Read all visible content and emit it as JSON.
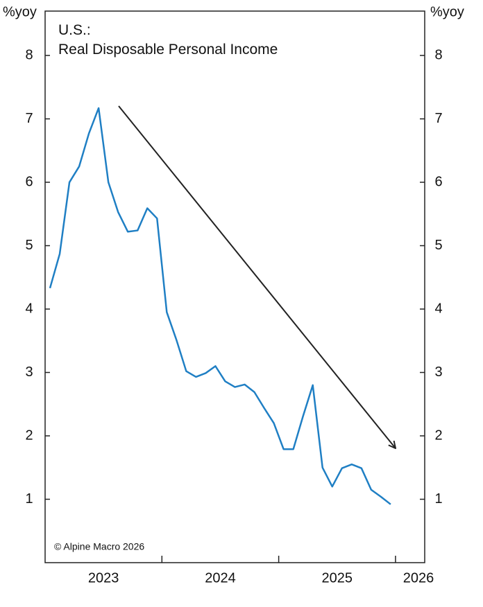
{
  "chart_data": {
    "type": "line",
    "title": "U.S.:",
    "subtitle": "Real Disposable Personal Income",
    "source": "© Alpine Macro 2026",
    "y_label": "%yoy",
    "y2_label": "%yoy",
    "x": [
      2023.0417,
      2023.125,
      2023.2083,
      2023.2917,
      2023.375,
      2023.4583,
      2023.5417,
      2023.625,
      2023.7083,
      2023.7917,
      2023.875,
      2023.9583,
      2024.0417,
      2024.125,
      2024.2083,
      2024.2917,
      2024.375,
      2024.4583,
      2024.5417,
      2024.625,
      2024.7083,
      2024.7917,
      2024.875,
      2024.9583,
      2025.0417,
      2025.125,
      2025.2083,
      2025.2917,
      2025.375,
      2025.4583,
      2025.5417,
      2025.625,
      2025.7083,
      2025.7917,
      2025.875,
      2025.9583
    ],
    "series": [
      {
        "name": "Real Disposable Personal Income",
        "color": "#1f7fc4",
        "values": [
          4.33,
          4.87,
          6.0,
          6.25,
          6.77,
          7.17,
          6.0,
          5.53,
          5.22,
          5.24,
          5.59,
          5.43,
          3.95,
          3.51,
          3.02,
          2.93,
          2.99,
          3.1,
          2.86,
          2.77,
          2.81,
          2.69,
          2.44,
          2.2,
          1.79,
          1.79,
          2.31,
          2.8,
          1.5,
          1.2,
          1.49,
          1.55,
          1.49,
          1.15,
          1.04,
          0.92
        ]
      }
    ],
    "xlim": [
      2023,
      2026.25
    ],
    "xticks": [
      2023,
      2024,
      2025,
      2026
    ],
    "ylim": [
      0,
      8.7
    ],
    "yticks": [
      1,
      2,
      3,
      4,
      5,
      6,
      7,
      8
    ],
    "y2lim": [
      0,
      8.7
    ],
    "y2ticks": [
      1,
      2,
      3,
      4,
      5,
      6,
      7,
      8
    ],
    "grid": false
  }
}
